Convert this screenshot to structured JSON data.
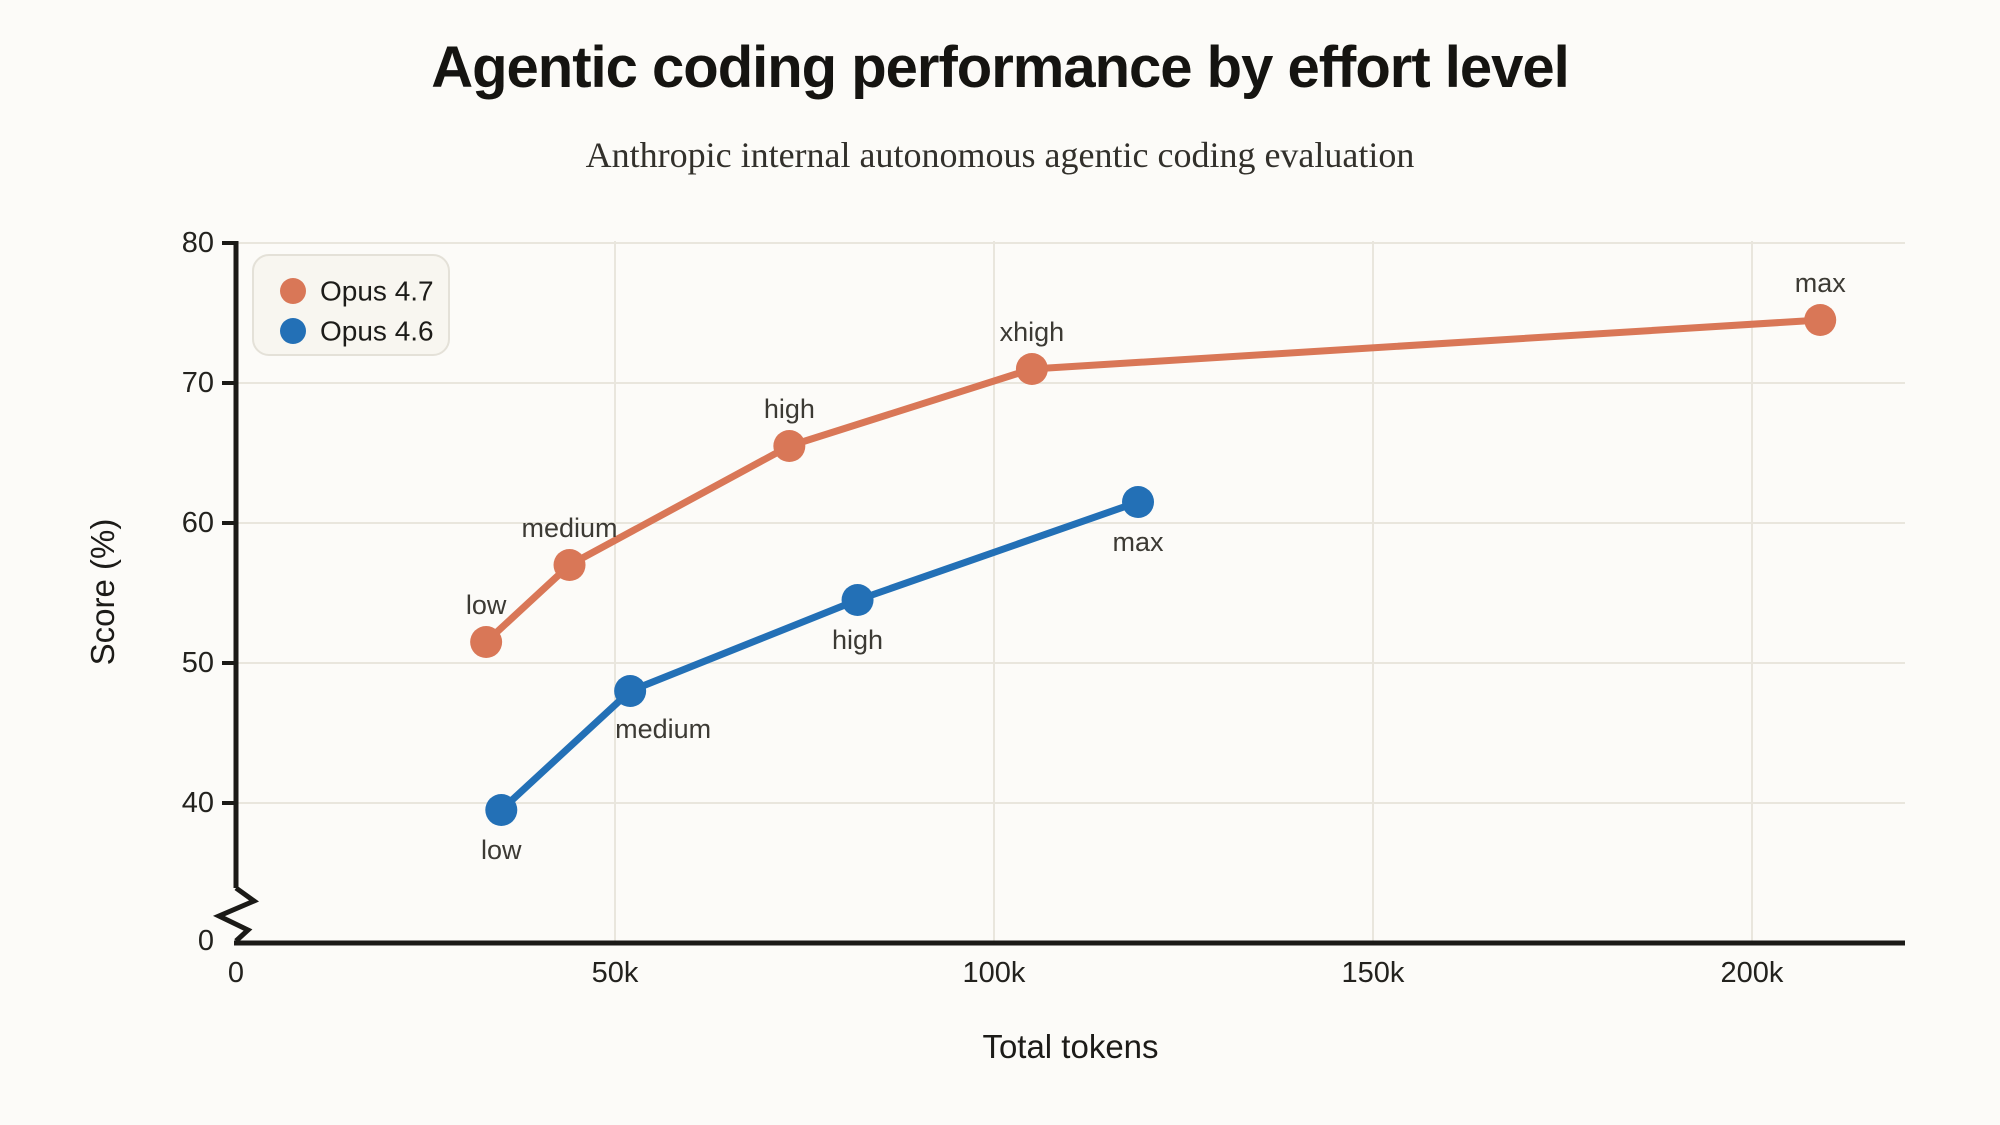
{
  "header": {
    "title": "Agentic coding performance by effort level",
    "subtitle": "Anthropic internal autonomous agentic coding evaluation"
  },
  "chart_data": {
    "type": "line",
    "title": "Agentic coding performance by effort level",
    "subtitle": "Anthropic internal autonomous agentic coding evaluation",
    "xlabel": "Total tokens",
    "ylabel": "Score (%)",
    "xlim": [
      0,
      220000
    ],
    "grid": true,
    "y_axis_break": {
      "between": [
        0,
        40
      ]
    },
    "x_ticks": [
      {
        "value": 0,
        "label": "0"
      },
      {
        "value": 50000,
        "label": "50k"
      },
      {
        "value": 100000,
        "label": "100k"
      },
      {
        "value": 150000,
        "label": "150k"
      },
      {
        "value": 200000,
        "label": "200k"
      }
    ],
    "y_ticks": [
      {
        "value": 80,
        "label": "80"
      },
      {
        "value": 70,
        "label": "70"
      },
      {
        "value": 60,
        "label": "60"
      },
      {
        "value": 50,
        "label": "50"
      },
      {
        "value": 40,
        "label": "40"
      },
      {
        "value": 0,
        "label": "0"
      }
    ],
    "legend": {
      "position": "top-left",
      "entries": [
        "Opus 4.7",
        "Opus 4.6"
      ]
    },
    "series": [
      {
        "name": "Opus 4.7",
        "color": "#d97757",
        "points": [
          {
            "label": "low",
            "tokens": 33000,
            "score": 51.5,
            "label_side": "above"
          },
          {
            "label": "medium",
            "tokens": 44000,
            "score": 57,
            "label_side": "above"
          },
          {
            "label": "high",
            "tokens": 73000,
            "score": 65.5,
            "label_side": "above"
          },
          {
            "label": "xhigh",
            "tokens": 105000,
            "score": 71,
            "label_side": "above"
          },
          {
            "label": "max",
            "tokens": 209000,
            "score": 74.5,
            "label_side": "above"
          }
        ]
      },
      {
        "name": "Opus 4.6",
        "color": "#2370b6",
        "points": [
          {
            "label": "low",
            "tokens": 35000,
            "score": 39.5,
            "label_side": "below"
          },
          {
            "label": "medium",
            "tokens": 52000,
            "score": 48,
            "label_side": "below-right"
          },
          {
            "label": "high",
            "tokens": 82000,
            "score": 54.5,
            "label_side": "below"
          },
          {
            "label": "max",
            "tokens": 119000,
            "score": 61.5,
            "label_side": "below"
          }
        ]
      }
    ]
  },
  "colors": {
    "background": "#fcfbf8",
    "grid": "#e9e6dd",
    "axis": "#1b1a17",
    "tick_text": "#23221e",
    "point_label_text": "#3c3a34",
    "legend_fill": "#f8f6f0",
    "legend_border": "#e4e1d8",
    "legend_text": "#1d1c19"
  }
}
